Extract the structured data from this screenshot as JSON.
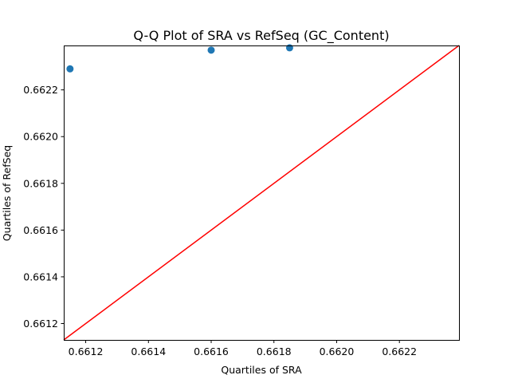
{
  "chart_data": {
    "type": "scatter",
    "title": "Q-Q Plot of SRA vs RefSeq (GC_Content)",
    "xlabel": "Quartiles of SRA",
    "ylabel": "Quartiles of RefSeq",
    "xlim": [
      0.66113,
      0.66239
    ],
    "ylim": [
      0.66113,
      0.66239
    ],
    "x_ticks": [
      0.6612,
      0.6614,
      0.6616,
      0.6618,
      0.662,
      0.6622
    ],
    "x_tick_labels": [
      "0.6612",
      "0.6614",
      "0.6616",
      "0.6618",
      "0.6620",
      "0.6622"
    ],
    "y_ticks": [
      0.6612,
      0.6614,
      0.6616,
      0.6618,
      0.662,
      0.6622
    ],
    "y_tick_labels": [
      "0.6612",
      "0.6614",
      "0.6616",
      "0.6618",
      "0.6620",
      "0.6622"
    ],
    "grid": false,
    "series": [
      {
        "x": [
          0.66115,
          0.6616,
          0.66185
        ],
        "y": [
          0.66229,
          0.66237,
          0.66238
        ],
        "color": "#1f77b4"
      }
    ],
    "reference_line": {
      "x": [
        0.66113,
        0.66239
      ],
      "y": [
        0.66113,
        0.66239
      ],
      "color": "#ff0000"
    }
  }
}
